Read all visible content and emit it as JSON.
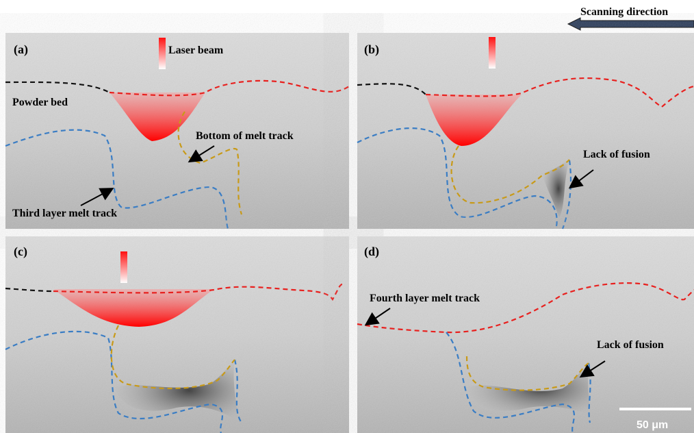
{
  "header": {
    "scan_direction": "Scanning direction"
  },
  "panels": [
    {
      "label": "(a)",
      "annotations": [
        "Laser beam",
        "Powder bed",
        "Bottom of melt track",
        "Third layer melt track"
      ]
    },
    {
      "label": "(b)",
      "annotations": [
        "Lack of fusion"
      ]
    },
    {
      "label": "(c)",
      "annotations": []
    },
    {
      "label": "(d)",
      "annotations": [
        "Fourth layer melt track",
        "Lack of fusion"
      ]
    }
  ],
  "scale_bar": "50 μm"
}
